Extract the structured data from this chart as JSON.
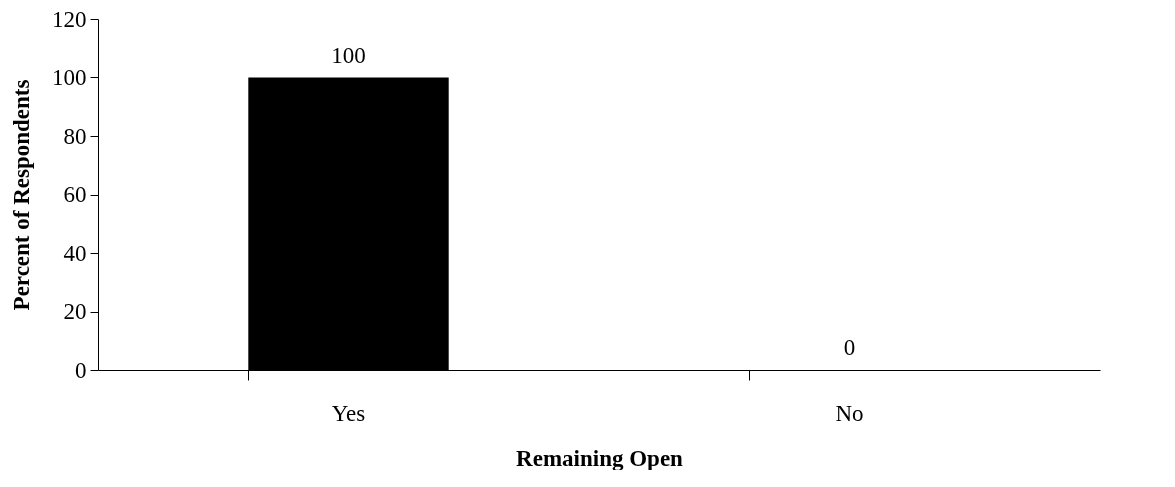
{
  "chart_data": {
    "type": "bar",
    "categories": [
      "Yes",
      "No"
    ],
    "values": [
      100,
      0
    ],
    "color": "#000000",
    "xlabel": "Remaining Open",
    "ylabel": "Percent of Respondents",
    "ylim": [
      0,
      120
    ],
    "yticks": [
      0,
      20,
      40,
      60,
      80,
      100,
      120
    ],
    "data_labels": true,
    "grid": false
  }
}
